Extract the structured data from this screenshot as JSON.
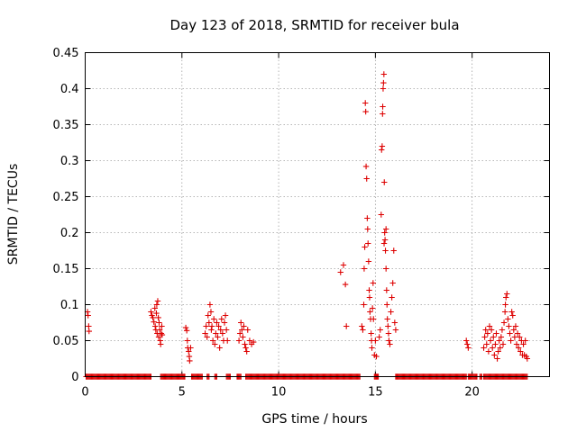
{
  "chart_data": {
    "type": "scatter",
    "title": "Day 123 of 2018, SRMTID for receiver bula",
    "xlabel": "GPS time / hours",
    "ylabel": "SRMTID / TECUs",
    "xlim": [
      0,
      24
    ],
    "ylim": [
      0,
      0.45
    ],
    "x_ticks": [
      0,
      5,
      10,
      15,
      20
    ],
    "x_tick_labels": [
      "0",
      "5",
      "10",
      "15",
      "20"
    ],
    "y_ticks": [
      0,
      0.05,
      0.1,
      0.15,
      0.2,
      0.25,
      0.3,
      0.35,
      0.4,
      0.45
    ],
    "y_tick_labels": [
      "0",
      "0.05",
      "0.1",
      "0.15",
      "0.2",
      "0.25",
      "0.3",
      "0.35",
      "0.4",
      "0.45"
    ],
    "grid": true,
    "marker": "+",
    "color": "#dd0000",
    "series": [
      {
        "name": "SRMTID",
        "points": [
          [
            0.12,
            0.09
          ],
          [
            0.15,
            0.085
          ],
          [
            0.18,
            0.07
          ],
          [
            0.2,
            0.063
          ],
          [
            3.4,
            0.09
          ],
          [
            3.45,
            0.085
          ],
          [
            3.5,
            0.082
          ],
          [
            3.55,
            0.076
          ],
          [
            3.6,
            0.095
          ],
          [
            3.62,
            0.07
          ],
          [
            3.65,
            0.065
          ],
          [
            3.68,
            0.088
          ],
          [
            3.7,
            0.1
          ],
          [
            3.72,
            0.06
          ],
          [
            3.75,
            0.105
          ],
          [
            3.78,
            0.082
          ],
          [
            3.8,
            0.055
          ],
          [
            3.82,
            0.075
          ],
          [
            3.85,
            0.065
          ],
          [
            3.88,
            0.05
          ],
          [
            3.9,
            0.045
          ],
          [
            3.93,
            0.06
          ],
          [
            3.96,
            0.07
          ],
          [
            3.98,
            0.058
          ],
          [
            5.2,
            0.068
          ],
          [
            5.25,
            0.064
          ],
          [
            5.28,
            0.05
          ],
          [
            5.3,
            0.04
          ],
          [
            5.35,
            0.035
          ],
          [
            5.38,
            0.028
          ],
          [
            5.4,
            0.022
          ],
          [
            5.45,
            0.04
          ],
          [
            6.2,
            0.06
          ],
          [
            6.25,
            0.07
          ],
          [
            6.3,
            0.055
          ],
          [
            6.35,
            0.085
          ],
          [
            6.4,
            0.075
          ],
          [
            6.45,
            0.1
          ],
          [
            6.5,
            0.09
          ],
          [
            6.52,
            0.065
          ],
          [
            6.55,
            0.07
          ],
          [
            6.6,
            0.05
          ],
          [
            6.65,
            0.08
          ],
          [
            6.7,
            0.045
          ],
          [
            6.75,
            0.06
          ],
          [
            6.8,
            0.075
          ],
          [
            6.85,
            0.055
          ],
          [
            6.9,
            0.07
          ],
          [
            6.95,
            0.04
          ],
          [
            7.0,
            0.065
          ],
          [
            7.05,
            0.08
          ],
          [
            7.1,
            0.06
          ],
          [
            7.15,
            0.05
          ],
          [
            7.2,
            0.075
          ],
          [
            7.25,
            0.085
          ],
          [
            7.3,
            0.065
          ],
          [
            7.35,
            0.05
          ],
          [
            7.95,
            0.05
          ],
          [
            8.0,
            0.06
          ],
          [
            8.05,
            0.075
          ],
          [
            8.1,
            0.065
          ],
          [
            8.15,
            0.055
          ],
          [
            8.2,
            0.07
          ],
          [
            8.25,
            0.045
          ],
          [
            8.3,
            0.04
          ],
          [
            8.35,
            0.035
          ],
          [
            8.4,
            0.065
          ],
          [
            8.5,
            0.05
          ],
          [
            8.6,
            0.045
          ],
          [
            8.7,
            0.048
          ],
          [
            13.2,
            0.145
          ],
          [
            13.35,
            0.155
          ],
          [
            13.45,
            0.128
          ],
          [
            13.5,
            0.07
          ],
          [
            14.3,
            0.07
          ],
          [
            14.35,
            0.065
          ],
          [
            14.4,
            0.1
          ],
          [
            14.42,
            0.15
          ],
          [
            14.45,
            0.18
          ],
          [
            14.48,
            0.38
          ],
          [
            14.5,
            0.368
          ],
          [
            14.52,
            0.292
          ],
          [
            14.55,
            0.275
          ],
          [
            14.58,
            0.22
          ],
          [
            14.6,
            0.205
          ],
          [
            14.62,
            0.185
          ],
          [
            14.65,
            0.16
          ],
          [
            14.68,
            0.12
          ],
          [
            14.7,
            0.11
          ],
          [
            14.72,
            0.09
          ],
          [
            14.75,
            0.08
          ],
          [
            14.78,
            0.06
          ],
          [
            14.8,
            0.05
          ],
          [
            14.82,
            0.04
          ],
          [
            14.85,
            0.095
          ],
          [
            14.88,
            0.13
          ],
          [
            14.9,
            0.08
          ],
          [
            14.95,
            0.03
          ],
          [
            15.0,
            0.05
          ],
          [
            15.05,
            0.028
          ],
          [
            15.2,
            0.055
          ],
          [
            15.25,
            0.065
          ],
          [
            15.3,
            0.225
          ],
          [
            15.32,
            0.315
          ],
          [
            15.35,
            0.32
          ],
          [
            15.37,
            0.365
          ],
          [
            15.38,
            0.375
          ],
          [
            15.4,
            0.4
          ],
          [
            15.42,
            0.408
          ],
          [
            15.44,
            0.42
          ],
          [
            15.46,
            0.27
          ],
          [
            15.48,
            0.2
          ],
          [
            15.5,
            0.19
          ],
          [
            15.52,
            0.175
          ],
          [
            15.55,
            0.15
          ],
          [
            15.58,
            0.12
          ],
          [
            15.6,
            0.1
          ],
          [
            15.62,
            0.08
          ],
          [
            15.65,
            0.07
          ],
          [
            15.68,
            0.06
          ],
          [
            15.7,
            0.05
          ],
          [
            15.75,
            0.045
          ],
          [
            15.8,
            0.09
          ],
          [
            15.85,
            0.11
          ],
          [
            15.9,
            0.13
          ],
          [
            15.95,
            0.175
          ],
          [
            16.0,
            0.075
          ],
          [
            16.05,
            0.065
          ],
          [
            15.45,
            0.185
          ],
          [
            15.55,
            0.205
          ],
          [
            19.7,
            0.05
          ],
          [
            19.75,
            0.045
          ],
          [
            19.8,
            0.04
          ],
          [
            20.6,
            0.04
          ],
          [
            20.65,
            0.055
          ],
          [
            20.7,
            0.065
          ],
          [
            20.75,
            0.045
          ],
          [
            20.8,
            0.06
          ],
          [
            20.85,
            0.035
          ],
          [
            20.9,
            0.07
          ],
          [
            20.95,
            0.05
          ],
          [
            21.0,
            0.065
          ],
          [
            21.05,
            0.04
          ],
          [
            21.1,
            0.055
          ],
          [
            21.15,
            0.03
          ],
          [
            21.2,
            0.045
          ],
          [
            21.25,
            0.06
          ],
          [
            21.3,
            0.025
          ],
          [
            21.35,
            0.035
          ],
          [
            21.4,
            0.05
          ],
          [
            21.45,
            0.04
          ],
          [
            21.5,
            0.055
          ],
          [
            21.55,
            0.065
          ],
          [
            21.6,
            0.045
          ],
          [
            21.65,
            0.075
          ],
          [
            21.7,
            0.09
          ],
          [
            21.72,
            0.1
          ],
          [
            21.75,
            0.11
          ],
          [
            21.8,
            0.115
          ],
          [
            21.85,
            0.08
          ],
          [
            21.9,
            0.07
          ],
          [
            21.95,
            0.06
          ],
          [
            22.0,
            0.05
          ],
          [
            22.05,
            0.09
          ],
          [
            22.1,
            0.085
          ],
          [
            22.15,
            0.065
          ],
          [
            22.2,
            0.055
          ],
          [
            22.25,
            0.07
          ],
          [
            22.3,
            0.045
          ],
          [
            22.35,
            0.06
          ],
          [
            22.4,
            0.04
          ],
          [
            22.45,
            0.055
          ],
          [
            22.5,
            0.035
          ],
          [
            22.55,
            0.05
          ],
          [
            22.6,
            0.03
          ],
          [
            22.65,
            0.045
          ],
          [
            22.7,
            0.03
          ],
          [
            22.75,
            0.05
          ],
          [
            22.8,
            0.028
          ],
          [
            22.85,
            0.025
          ]
        ],
        "zero_ranges": [
          [
            0.05,
            3.4
          ],
          [
            3.9,
            5.15
          ],
          [
            5.5,
            6.05
          ],
          [
            6.3,
            6.4
          ],
          [
            6.7,
            6.8
          ],
          [
            7.3,
            7.5
          ],
          [
            7.85,
            8.05
          ],
          [
            8.3,
            14.2
          ],
          [
            14.95,
            15.15
          ],
          [
            16.05,
            19.7
          ],
          [
            19.8,
            20.25
          ],
          [
            20.4,
            20.5
          ],
          [
            20.6,
            22.8
          ]
        ],
        "zero_points": [
          22.85
        ],
        "zero_spacing": 0.05
      }
    ]
  }
}
